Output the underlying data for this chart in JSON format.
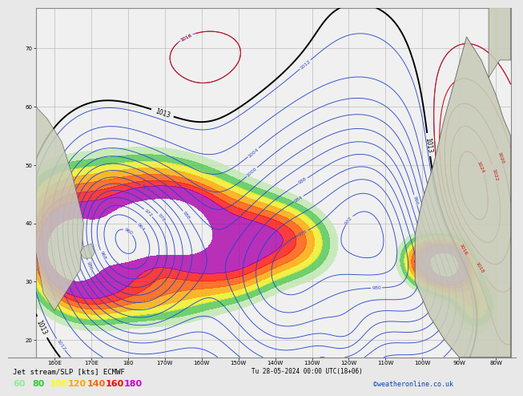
{
  "title": "Jet stream/SLP [kts] ECMWF",
  "date_str": "Tu 28-05-2024 00:00 UTC(18+06)",
  "watermark": "©weatheronline.co.uk",
  "legend_values": [
    60,
    80,
    100,
    120,
    140,
    160,
    180
  ],
  "legend_colors": [
    "#90ee90",
    "#32cd32",
    "#ffff00",
    "#ffa500",
    "#ff6600",
    "#ff0000",
    "#cc00cc"
  ],
  "bg_color": "#e8e8e8",
  "map_bg": "#f0f0f0",
  "slp_blue": "#2244cc",
  "slp_black": "#000000",
  "slp_red": "#cc1111",
  "figsize": [
    6.34,
    4.9
  ],
  "dpi": 100,
  "lon_min": 155,
  "lon_max": 284,
  "lat_min": 17,
  "lat_max": 77,
  "lon_tick_step": 10,
  "lat_tick_step": 10
}
